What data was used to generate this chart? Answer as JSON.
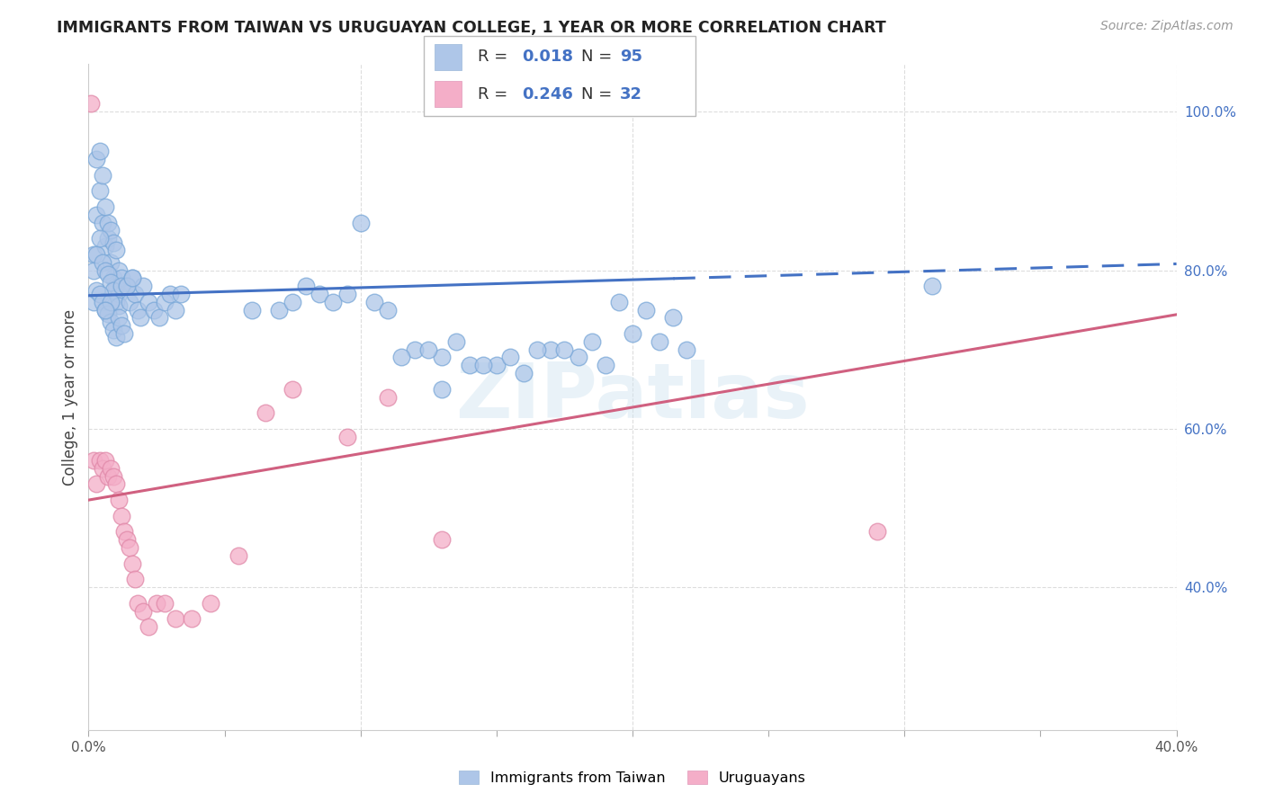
{
  "title": "IMMIGRANTS FROM TAIWAN VS URUGUAYAN COLLEGE, 1 YEAR OR MORE CORRELATION CHART",
  "source": "Source: ZipAtlas.com",
  "ylabel": "College, 1 year or more",
  "xlim": [
    0.0,
    0.4
  ],
  "ylim": [
    0.22,
    1.06
  ],
  "blue_color": "#aec6e8",
  "pink_color": "#f4aec8",
  "blue_line_color": "#4472c4",
  "pink_line_color": "#d06080",
  "watermark": "ZIPatlas",
  "blue_r": "0.018",
  "blue_n": "95",
  "pink_r": "0.246",
  "pink_n": "32",
  "legend_label_blue": "Immigrants from Taiwan",
  "legend_label_pink": "Uruguayans",
  "tw_x": [
    0.002,
    0.003,
    0.004,
    0.005,
    0.006,
    0.007,
    0.008,
    0.009,
    0.01,
    0.011,
    0.003,
    0.004,
    0.005,
    0.006,
    0.007,
    0.008,
    0.009,
    0.01,
    0.011,
    0.012,
    0.002,
    0.003,
    0.004,
    0.005,
    0.006,
    0.007,
    0.008,
    0.009,
    0.01,
    0.011,
    0.002,
    0.003,
    0.004,
    0.005,
    0.006,
    0.007,
    0.008,
    0.009,
    0.01,
    0.011,
    0.012,
    0.013,
    0.014,
    0.015,
    0.016,
    0.017,
    0.018,
    0.019,
    0.02,
    0.022,
    0.024,
    0.026,
    0.028,
    0.03,
    0.032,
    0.034,
    0.06,
    0.07,
    0.075,
    0.08,
    0.085,
    0.09,
    0.095,
    0.1,
    0.105,
    0.11,
    0.12,
    0.13,
    0.14,
    0.15,
    0.16,
    0.17,
    0.18,
    0.19,
    0.2,
    0.21,
    0.22,
    0.13,
    0.185,
    0.175,
    0.155,
    0.145,
    0.135,
    0.125,
    0.115,
    0.165,
    0.195,
    0.205,
    0.215,
    0.31,
    0.012,
    0.008,
    0.006,
    0.014,
    0.016
  ],
  "tw_y": [
    0.82,
    0.87,
    0.9,
    0.86,
    0.83,
    0.84,
    0.81,
    0.79,
    0.78,
    0.77,
    0.94,
    0.95,
    0.92,
    0.88,
    0.86,
    0.85,
    0.835,
    0.825,
    0.8,
    0.79,
    0.8,
    0.82,
    0.84,
    0.81,
    0.8,
    0.795,
    0.785,
    0.775,
    0.76,
    0.755,
    0.76,
    0.775,
    0.77,
    0.76,
    0.75,
    0.745,
    0.735,
    0.725,
    0.715,
    0.74,
    0.73,
    0.72,
    0.78,
    0.76,
    0.79,
    0.77,
    0.75,
    0.74,
    0.78,
    0.76,
    0.75,
    0.74,
    0.76,
    0.77,
    0.75,
    0.77,
    0.75,
    0.75,
    0.76,
    0.78,
    0.77,
    0.76,
    0.77,
    0.86,
    0.76,
    0.75,
    0.7,
    0.69,
    0.68,
    0.68,
    0.67,
    0.7,
    0.69,
    0.68,
    0.72,
    0.71,
    0.7,
    0.65,
    0.71,
    0.7,
    0.69,
    0.68,
    0.71,
    0.7,
    0.69,
    0.7,
    0.76,
    0.75,
    0.74,
    0.78,
    0.78,
    0.76,
    0.75,
    0.78,
    0.79
  ],
  "ur_x": [
    0.002,
    0.003,
    0.004,
    0.005,
    0.006,
    0.007,
    0.008,
    0.009,
    0.01,
    0.011,
    0.012,
    0.013,
    0.014,
    0.015,
    0.016,
    0.017,
    0.018,
    0.02,
    0.022,
    0.025,
    0.028,
    0.032,
    0.038,
    0.045,
    0.055,
    0.065,
    0.075,
    0.095,
    0.11,
    0.13,
    0.29,
    0.001
  ],
  "ur_y": [
    0.56,
    0.53,
    0.56,
    0.55,
    0.56,
    0.54,
    0.55,
    0.54,
    0.53,
    0.51,
    0.49,
    0.47,
    0.46,
    0.45,
    0.43,
    0.41,
    0.38,
    0.37,
    0.35,
    0.38,
    0.38,
    0.36,
    0.36,
    0.38,
    0.44,
    0.62,
    0.65,
    0.59,
    0.64,
    0.46,
    0.47,
    1.01
  ]
}
